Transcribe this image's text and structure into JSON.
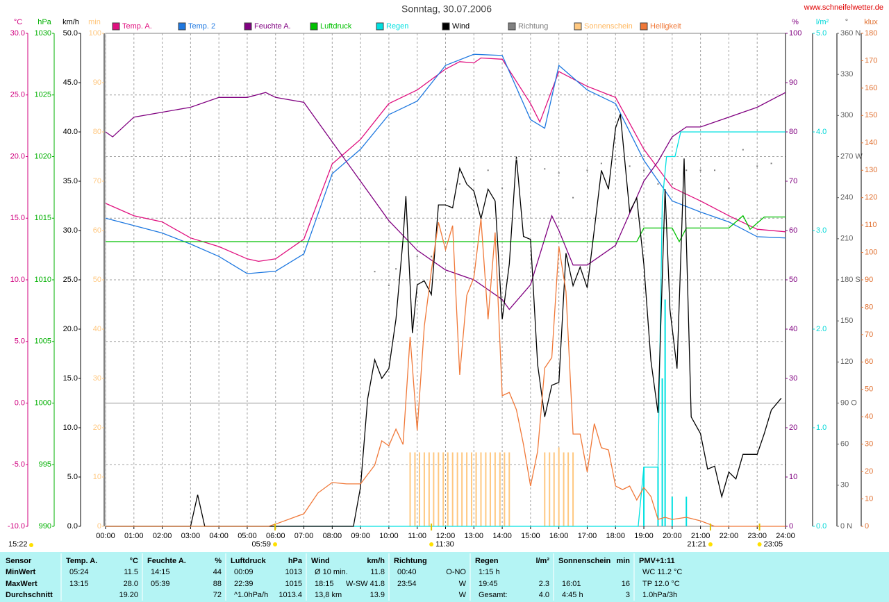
{
  "chart_data": {
    "type": "multi-axis-line",
    "title": "Sonntag, 30.07.2006",
    "source": "www.schneifelwetter.de",
    "created": "15:22",
    "xlim": [
      0,
      24
    ],
    "xticks": [
      {
        "value": 0,
        "label": "00:00"
      },
      {
        "value": 1,
        "label": "01:00"
      },
      {
        "value": 2,
        "label": "02:00"
      },
      {
        "value": 3,
        "label": "03:00"
      },
      {
        "value": 4,
        "label": "04:00"
      },
      {
        "value": 5,
        "label": "05:00"
      },
      {
        "value": 6,
        "label": "06:00"
      },
      {
        "value": 7,
        "label": "07:00"
      },
      {
        "value": 8,
        "label": "08:00"
      },
      {
        "value": 9,
        "label": "09:00"
      },
      {
        "value": 10,
        "label": "10:00"
      },
      {
        "value": 11,
        "label": "11:00"
      },
      {
        "value": 12,
        "label": "12:00"
      },
      {
        "value": 13,
        "label": "13:00"
      },
      {
        "value": 14,
        "label": "14:00"
      },
      {
        "value": 15,
        "label": "15:00"
      },
      {
        "value": 16,
        "label": "16:00"
      },
      {
        "value": 17,
        "label": "17:00"
      },
      {
        "value": 18,
        "label": "18:00"
      },
      {
        "value": 19,
        "label": "19:00"
      },
      {
        "value": 20,
        "label": "20:00"
      },
      {
        "value": 21,
        "label": "21:00"
      },
      {
        "value": 22,
        "label": "22:00"
      },
      {
        "value": 23,
        "label": "23:00"
      },
      {
        "value": 24,
        "label": "24:00"
      }
    ],
    "x_grid": true,
    "y_axes": [
      {
        "unit": "°C",
        "side": "left",
        "color": "#d0007f",
        "grid": true,
        "lim": [
          -10,
          30
        ],
        "ticks": [
          {
            "value": 30,
            "label": "30.0"
          },
          {
            "value": 25,
            "label": "25.0"
          },
          {
            "value": 20,
            "label": "20.0"
          },
          {
            "value": 15,
            "label": "15.0"
          },
          {
            "value": 10,
            "label": "10.0"
          },
          {
            "value": 5,
            "label": "5.0"
          },
          {
            "value": 0,
            "label": "0.0"
          },
          {
            "value": -5,
            "label": "-5.0"
          },
          {
            "value": -10,
            "label": "-10.0"
          }
        ]
      },
      {
        "unit": "hPa",
        "side": "left",
        "color": "#00b000",
        "lim": [
          990,
          1030
        ],
        "ticks": [
          1030,
          1025,
          1020,
          1015,
          1010,
          1005,
          1000,
          995,
          990
        ]
      },
      {
        "unit": "km/h",
        "side": "left",
        "color": "#000000",
        "lim": [
          0,
          50
        ],
        "ticks": [
          {
            "value": 50,
            "label": "50.0"
          },
          {
            "value": 45,
            "label": "45.0"
          },
          {
            "value": 40,
            "label": "40.0"
          },
          {
            "value": 35,
            "label": "35.0"
          },
          {
            "value": 30,
            "label": "30.0"
          },
          {
            "value": 25,
            "label": "25.0"
          },
          {
            "value": 20,
            "label": "20.0"
          },
          {
            "value": 15,
            "label": "15.0"
          },
          {
            "value": 10,
            "label": "10.0"
          },
          {
            "value": 5,
            "label": "5.0"
          },
          {
            "value": 0,
            "label": "0.0"
          }
        ]
      },
      {
        "unit": "min",
        "side": "left",
        "color": "#ffc880",
        "lim": [
          0,
          100
        ],
        "ticks": [
          100,
          90,
          80,
          70,
          60,
          50,
          40,
          30,
          20,
          10,
          0
        ]
      },
      {
        "unit": "%",
        "side": "right",
        "color": "#800080",
        "lim": [
          0,
          100
        ],
        "ticks": [
          100,
          90,
          80,
          70,
          60,
          50,
          40,
          30,
          20,
          10,
          0
        ]
      },
      {
        "unit": "l/m²",
        "side": "right",
        "color": "#00d8d8",
        "lim": [
          0,
          5
        ],
        "ticks": [
          {
            "value": 5,
            "label": "5.0"
          },
          {
            "value": 4,
            "label": "4.0"
          },
          {
            "value": 3,
            "label": "3.0"
          },
          {
            "value": 2,
            "label": "2.0"
          },
          {
            "value": 1,
            "label": "1.0"
          },
          {
            "value": 0,
            "label": "0.0"
          }
        ]
      },
      {
        "unit": "°",
        "side": "right",
        "color": "#606060",
        "lim": [
          0,
          360
        ],
        "ticks": [
          {
            "value": 360,
            "label": "360 N"
          },
          330,
          300,
          {
            "value": 270,
            "label": "270 W"
          },
          240,
          210,
          {
            "value": 180,
            "label": "180 S"
          },
          150,
          120,
          {
            "value": 90,
            "label": "90 O"
          },
          60,
          30,
          {
            "value": 0,
            "label": "0 N"
          }
        ]
      },
      {
        "unit": "klux",
        "side": "right",
        "color": "#e07030",
        "lim": [
          0,
          180
        ],
        "ticks": [
          180,
          170,
          160,
          150,
          140,
          130,
          120,
          110,
          100,
          90,
          80,
          70,
          60,
          50,
          40,
          30,
          20,
          10,
          0
        ]
      }
    ],
    "series": [
      {
        "name": "Temp. A.",
        "color": "#e0107f",
        "axis": 0,
        "style": "line",
        "x": [
          0,
          1,
          2,
          3,
          4,
          5,
          5.4,
          6,
          7,
          8,
          9,
          10,
          11,
          12,
          12.5,
          13,
          13.25,
          14,
          15,
          15.33,
          16,
          17,
          18,
          19,
          20,
          21,
          22,
          23,
          24
        ],
        "values": [
          16.2,
          15.2,
          14.7,
          13.4,
          12.7,
          11.7,
          11.5,
          11.7,
          13.3,
          19.4,
          21.4,
          24.3,
          25.4,
          27.1,
          27.7,
          27.6,
          28.0,
          27.9,
          24.3,
          22.8,
          26.9,
          25.7,
          24.8,
          20.6,
          17.5,
          16.4,
          15.2,
          14.1,
          13.9
        ]
      },
      {
        "name": "Temp. 2",
        "color": "#1e78e0",
        "axis": 0,
        "style": "line",
        "x": [
          0,
          1,
          2,
          3,
          4,
          5,
          6,
          7,
          8,
          9,
          10,
          11,
          12,
          13,
          14,
          15,
          15.5,
          16,
          17,
          18,
          19,
          20,
          21,
          22,
          23,
          24
        ],
        "values": [
          15.0,
          14.4,
          13.8,
          12.9,
          11.9,
          10.5,
          10.7,
          12.1,
          18.6,
          20.6,
          23.4,
          24.5,
          27.4,
          28.3,
          28.2,
          23.0,
          22.3,
          27.4,
          25.4,
          24.3,
          19.7,
          16.4,
          15.5,
          14.7,
          13.5,
          13.4
        ]
      },
      {
        "name": "Feuchte A.",
        "color": "#800080",
        "axis": 4,
        "style": "line",
        "x": [
          0,
          0.25,
          1,
          2,
          3,
          4,
          5,
          5.65,
          6,
          7,
          8,
          9,
          10,
          11,
          12,
          13,
          14,
          14.25,
          15,
          15.75,
          16,
          16.5,
          17,
          18,
          19,
          19.5,
          20,
          20.5,
          21,
          22,
          23,
          24
        ],
        "values": [
          80,
          79,
          83,
          84,
          85,
          87,
          87,
          88,
          87,
          86,
          78,
          70,
          62,
          56,
          52,
          50,
          46,
          44,
          49,
          63,
          60,
          53,
          53,
          57,
          70,
          74,
          79,
          81,
          81,
          83,
          85,
          88
        ]
      },
      {
        "name": "Luftdruck",
        "color": "#00c000",
        "axis": 1,
        "style": "line",
        "x": [
          0,
          18.75,
          19,
          20,
          20.25,
          20.5,
          22,
          22.5,
          22.75,
          23.25,
          24
        ],
        "values": [
          1013.1,
          1013.1,
          1014.2,
          1014.2,
          1013.1,
          1014.2,
          1014.2,
          1015.2,
          1014.1,
          1015.1,
          1015.1
        ]
      },
      {
        "name": "Regen",
        "color": "#00e0e0",
        "axis": 5,
        "style": "line",
        "x": [
          0,
          18.8,
          19.0,
          19.5,
          19.65,
          19.8,
          20.1,
          20.3,
          24
        ],
        "values": [
          0,
          0,
          0.6,
          0.6,
          3.3,
          3.75,
          3.75,
          4.0,
          4.0
        ],
        "bars": {
          "x": [
            19.0,
            19.5,
            19.65,
            19.75,
            20.0,
            20.5
          ],
          "values": [
            0.6,
            0.6,
            1.5,
            2.3,
            0.3,
            0.3
          ]
        }
      },
      {
        "name": "Wind",
        "color": "#000000",
        "axis": 2,
        "style": "line",
        "x": [
          0,
          3,
          3.25,
          3.5,
          8.75,
          9,
          9.25,
          9.5,
          9.75,
          10,
          10.25,
          10.5,
          10.6,
          10.83,
          11,
          11.25,
          11.5,
          11.75,
          12,
          12.25,
          12.5,
          12.75,
          13,
          13.25,
          13.5,
          13.75,
          14,
          14.25,
          14.5,
          14.75,
          15,
          15.25,
          15.5,
          15.75,
          16,
          16.25,
          16.5,
          16.75,
          17,
          17.25,
          17.5,
          17.75,
          18,
          18.17,
          18.5,
          18.75,
          19,
          19.25,
          19.5,
          19.75,
          19.92,
          20.17,
          20.42,
          20.67,
          21,
          21.25,
          21.5,
          21.75,
          22,
          22.25,
          22.5,
          22.75,
          23,
          23.25,
          23.5,
          23.85
        ],
        "values": [
          0,
          0,
          3.2,
          0,
          0,
          4,
          12.9,
          16.9,
          15,
          16,
          21,
          29.1,
          33.5,
          19.6,
          24.5,
          24.9,
          23.5,
          32.6,
          32.6,
          32.3,
          36.3,
          34.7,
          34,
          31.2,
          34.2,
          33,
          21,
          26.6,
          37.5,
          29.4,
          29.1,
          16.4,
          11.1,
          14.3,
          14.6,
          27.7,
          24.4,
          26.3,
          24.2,
          30.1,
          36.1,
          34.2,
          40.4,
          41.8,
          31.9,
          33.3,
          26.6,
          16.8,
          11.5,
          34.2,
          22,
          16,
          37.3,
          11.1,
          9.4,
          5.8,
          6.1,
          3,
          5.5,
          4.8,
          7.3,
          7.3,
          7.3,
          9.4,
          11.8,
          13.0
        ]
      },
      {
        "name": "Richtung",
        "color": "#808080",
        "axis": 6,
        "style": "dots",
        "x": [
          9.5,
          10,
          10.25,
          10.5,
          11,
          11.5,
          12,
          12.5,
          13,
          13.5,
          14,
          14.5,
          15,
          15.5,
          16,
          16.5,
          17,
          17.5,
          18,
          18.5,
          19,
          19.5,
          20,
          20.5,
          21,
          21.5,
          22,
          22.5,
          23,
          23.5,
          24
        ],
        "values": [
          186,
          176,
          188,
          209,
          197,
          197,
          246,
          250,
          253,
          260,
          247,
          268,
          268,
          261,
          258,
          240,
          260,
          265,
          268,
          263,
          260,
          250,
          250,
          260,
          260,
          260,
          247,
          275,
          263,
          265,
          280
        ]
      },
      {
        "name": "Sonnenschein",
        "color": "#ffc880",
        "axis": 3,
        "style": "bars",
        "x": [
          10.75,
          10.92,
          11.08,
          11.25,
          11.42,
          11.58,
          11.75,
          11.92,
          12.08,
          12.25,
          12.42,
          12.58,
          12.75,
          12.92,
          13.08,
          13.25,
          13.42,
          13.58,
          13.75,
          13.92,
          14.08,
          14.25,
          15.5,
          15.67,
          15.83,
          16.0,
          16.17,
          16.33,
          16.5
        ],
        "values": [
          15,
          15,
          15,
          15,
          15,
          15,
          15,
          15,
          15,
          15,
          15,
          15,
          15,
          15,
          15,
          15,
          15,
          15,
          15,
          15,
          15,
          15,
          15,
          15,
          15,
          16,
          15,
          15,
          15
        ]
      },
      {
        "name": "Helligkeit",
        "color": "#f07838",
        "axis": 7,
        "style": "line",
        "x": [
          0,
          5.75,
          6,
          7,
          7.5,
          8,
          8.5,
          9,
          9.5,
          9.75,
          10,
          10.25,
          10.5,
          10.75,
          11,
          11.25,
          11.5,
          11.75,
          12,
          12.25,
          12.5,
          12.75,
          13,
          13.25,
          13.5,
          13.75,
          14,
          14.25,
          14.5,
          14.75,
          15,
          15.25,
          15.5,
          15.75,
          16,
          16.25,
          16.5,
          16.75,
          17,
          17.25,
          17.5,
          17.75,
          18,
          18.25,
          18.5,
          18.75,
          19,
          19.25,
          19.5,
          19.75,
          20,
          20.5,
          21,
          21.5,
          24
        ],
        "values": [
          0,
          0,
          0.8,
          4.6,
          12.2,
          16,
          15.5,
          15.5,
          22.3,
          31.2,
          29.4,
          35.5,
          29.9,
          69.2,
          35,
          73,
          93.3,
          111,
          101,
          109.8,
          55.3,
          84.4,
          90.8,
          112.3,
          75.6,
          107.3,
          47.7,
          48.9,
          42.6,
          29.9,
          14.7,
          27.4,
          57.8,
          61.6,
          102.2,
          85.7,
          33.7,
          33.7,
          19.8,
          37.5,
          28.7,
          27.9,
          14.7,
          13.4,
          14.7,
          9.6,
          14.2,
          10.9,
          2.5,
          3.3,
          2.5,
          3.3,
          2,
          0,
          0
        ]
      }
    ],
    "annotations": [
      {
        "x": 5.983,
        "text": "05:59"
      },
      {
        "x": 11.5,
        "text": "11:30"
      },
      {
        "x": 21.35,
        "text": "21:21"
      },
      {
        "x": 23.083,
        "text": "23:05"
      }
    ]
  },
  "stats": {
    "row_labels": [
      "Sensor",
      "MinWert",
      "MaxWert",
      "Durchschnitt"
    ],
    "groups": [
      {
        "title": "Temp. A.",
        "unit": "°C",
        "rows": [
          [
            "05:24",
            "11.5"
          ],
          [
            "13:15",
            "28.0"
          ],
          [
            null,
            "19.20"
          ]
        ]
      },
      {
        "title": "Feuchte A.",
        "unit": "%",
        "rows": [
          [
            "14:15",
            "44"
          ],
          [
            "05:39",
            "88"
          ],
          [
            null,
            "72"
          ]
        ]
      },
      {
        "title": "Luftdruck",
        "unit": "hPa",
        "rows": [
          [
            "00:09",
            "1013"
          ],
          [
            "22:39",
            "1015"
          ],
          [
            "^1.0hPa/h",
            "1013.4"
          ]
        ]
      },
      {
        "title": "Wind",
        "unit": "km/h",
        "rows": [
          [
            "Ø 10 min.",
            "11.8"
          ],
          [
            "18:15",
            "W-SW 41.8"
          ],
          [
            "13,8 km",
            "13.9"
          ]
        ]
      },
      {
        "title": "Richtung",
        "rows": [
          [
            "00:40",
            "O-NO"
          ],
          [
            "23:54",
            "W"
          ],
          [
            null,
            "W"
          ]
        ]
      },
      {
        "title": "Regen",
        "unit": "l/m²",
        "rows": [
          [
            "1:15 h",
            null
          ],
          [
            "19:45",
            "2.3"
          ],
          [
            "Gesamt:",
            "4.0"
          ]
        ]
      },
      {
        "title": "Sonnenschein",
        "unit": "min",
        "rows": [
          [
            null,
            null
          ],
          [
            "16:01",
            "16"
          ],
          [
            "4:45 h",
            "3"
          ]
        ]
      },
      {
        "title": "PMV+1:11",
        "rows": [
          [
            "WC 11.2 °C",
            null
          ],
          [
            "TP 12.0 °C",
            null
          ],
          [
            "1.0hPa/3h",
            null
          ]
        ]
      }
    ]
  }
}
